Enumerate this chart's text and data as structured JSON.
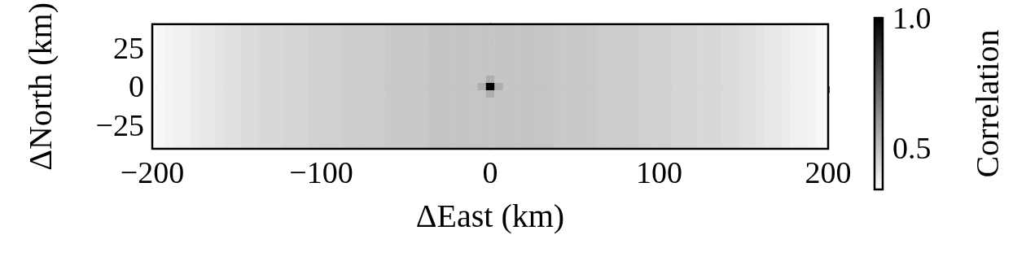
{
  "chart_data": {
    "type": "heatmap",
    "xlabel": "ΔEast (km)",
    "ylabel": "ΔNorth (km)",
    "clabel": "Correlation",
    "x": [
      -200,
      -195,
      -190,
      -185,
      -180,
      -175,
      -170,
      -165,
      -160,
      -155,
      -150,
      -145,
      -140,
      -135,
      -130,
      -125,
      -120,
      -115,
      -110,
      -105,
      -100,
      -95,
      -90,
      -85,
      -80,
      -75,
      -70,
      -65,
      -60,
      -55,
      -50,
      -45,
      -40,
      -35,
      -30,
      -25,
      -20,
      -15,
      -10,
      -5,
      0,
      5,
      10,
      15,
      20,
      25,
      30,
      35,
      40,
      45,
      50,
      55,
      60,
      65,
      70,
      75,
      80,
      85,
      90,
      95,
      100,
      105,
      110,
      115,
      120,
      125,
      130,
      135,
      140,
      145,
      150,
      155,
      160,
      165,
      170,
      175,
      180,
      185,
      190,
      195,
      200
    ],
    "cells": [
      [
        0.35,
        0.36,
        0.37,
        0.38,
        0.38,
        0.39,
        0.4,
        0.4,
        0.41,
        0.42,
        0.42,
        0.43,
        0.43,
        0.44,
        0.44,
        0.44,
        0.45,
        0.45,
        0.45,
        0.46,
        0.46,
        0.46,
        0.46,
        0.47,
        0.47,
        0.47,
        0.47,
        0.47,
        0.48,
        0.48,
        0.48,
        0.48,
        0.48,
        0.49,
        0.49,
        0.49,
        0.49,
        0.49,
        0.49,
        0.49,
        0.49,
        0.49,
        0.49,
        0.49,
        0.49,
        0.49,
        0.49,
        0.49,
        0.48,
        0.48,
        0.48,
        0.48,
        0.48,
        0.47,
        0.47,
        0.47,
        0.47,
        0.47,
        0.46,
        0.46,
        0.46,
        0.46,
        0.45,
        0.45,
        0.45,
        0.44,
        0.44,
        0.44,
        0.43,
        0.43,
        0.42,
        0.42,
        0.41,
        0.4,
        0.4,
        0.39,
        0.38,
        0.38,
        0.37,
        0.36,
        0.35
      ],
      [
        0.35,
        0.36,
        0.37,
        0.38,
        0.38,
        0.39,
        0.4,
        0.4,
        0.41,
        0.42,
        0.42,
        0.43,
        0.43,
        0.44,
        0.44,
        0.44,
        0.45,
        0.45,
        0.45,
        0.46,
        0.46,
        0.46,
        0.46,
        0.47,
        0.47,
        0.47,
        0.47,
        0.47,
        0.48,
        0.48,
        0.48,
        0.48,
        0.48,
        0.49,
        0.49,
        0.49,
        0.49,
        0.49,
        0.49,
        0.49,
        0.49,
        0.49,
        0.49,
        0.49,
        0.49,
        0.49,
        0.49,
        0.49,
        0.48,
        0.48,
        0.48,
        0.48,
        0.48,
        0.47,
        0.47,
        0.47,
        0.47,
        0.47,
        0.46,
        0.46,
        0.46,
        0.46,
        0.45,
        0.45,
        0.45,
        0.44,
        0.44,
        0.44,
        0.43,
        0.43,
        0.42,
        0.42,
        0.41,
        0.4,
        0.4,
        0.39,
        0.38,
        0.38,
        0.37,
        0.36,
        0.35
      ],
      [
        0.35,
        0.36,
        0.37,
        0.38,
        0.38,
        0.39,
        0.4,
        0.4,
        0.41,
        0.42,
        0.42,
        0.43,
        0.43,
        0.44,
        0.44,
        0.44,
        0.45,
        0.45,
        0.45,
        0.46,
        0.46,
        0.46,
        0.46,
        0.47,
        0.47,
        0.47,
        0.47,
        0.47,
        0.48,
        0.48,
        0.48,
        0.48,
        0.48,
        0.49,
        0.49,
        0.49,
        0.49,
        0.49,
        0.49,
        0.49,
        0.49,
        0.49,
        0.49,
        0.49,
        0.49,
        0.49,
        0.49,
        0.49,
        0.48,
        0.48,
        0.48,
        0.48,
        0.48,
        0.47,
        0.47,
        0.47,
        0.47,
        0.47,
        0.46,
        0.46,
        0.46,
        0.46,
        0.45,
        0.45,
        0.45,
        0.44,
        0.44,
        0.44,
        0.43,
        0.43,
        0.42,
        0.42,
        0.41,
        0.4,
        0.4,
        0.39,
        0.38,
        0.38,
        0.37,
        0.36,
        0.35
      ],
      [
        0.35,
        0.36,
        0.37,
        0.38,
        0.38,
        0.39,
        0.4,
        0.4,
        0.41,
        0.42,
        0.42,
        0.43,
        0.43,
        0.44,
        0.44,
        0.44,
        0.45,
        0.45,
        0.45,
        0.46,
        0.46,
        0.46,
        0.46,
        0.47,
        0.47,
        0.47,
        0.47,
        0.47,
        0.48,
        0.48,
        0.48,
        0.48,
        0.48,
        0.49,
        0.49,
        0.49,
        0.49,
        0.49,
        0.49,
        0.49,
        0.49,
        0.49,
        0.49,
        0.49,
        0.49,
        0.49,
        0.49,
        0.49,
        0.48,
        0.48,
        0.48,
        0.48,
        0.48,
        0.47,
        0.47,
        0.47,
        0.47,
        0.47,
        0.46,
        0.46,
        0.46,
        0.46,
        0.45,
        0.45,
        0.45,
        0.44,
        0.44,
        0.44,
        0.43,
        0.43,
        0.42,
        0.42,
        0.41,
        0.4,
        0.4,
        0.39,
        0.38,
        0.38,
        0.37,
        0.36,
        0.35
      ],
      [
        0.35,
        0.36,
        0.37,
        0.38,
        0.38,
        0.39,
        0.4,
        0.4,
        0.41,
        0.42,
        0.42,
        0.43,
        0.43,
        0.44,
        0.44,
        0.44,
        0.45,
        0.45,
        0.45,
        0.46,
        0.46,
        0.46,
        0.46,
        0.47,
        0.47,
        0.47,
        0.47,
        0.47,
        0.48,
        0.48,
        0.48,
        0.48,
        0.48,
        0.49,
        0.49,
        0.49,
        0.49,
        0.49,
        0.49,
        0.49,
        0.49,
        0.49,
        0.49,
        0.49,
        0.49,
        0.49,
        0.49,
        0.49,
        0.48,
        0.48,
        0.48,
        0.48,
        0.48,
        0.47,
        0.47,
        0.47,
        0.47,
        0.47,
        0.46,
        0.46,
        0.46,
        0.46,
        0.45,
        0.45,
        0.45,
        0.44,
        0.44,
        0.44,
        0.43,
        0.43,
        0.42,
        0.42,
        0.41,
        0.4,
        0.4,
        0.39,
        0.38,
        0.38,
        0.37,
        0.36,
        0.35
      ],
      [
        0.35,
        0.36,
        0.37,
        0.38,
        0.38,
        0.39,
        0.4,
        0.4,
        0.41,
        0.42,
        0.42,
        0.43,
        0.43,
        0.44,
        0.44,
        0.44,
        0.45,
        0.45,
        0.45,
        0.46,
        0.46,
        0.46,
        0.46,
        0.47,
        0.47,
        0.47,
        0.47,
        0.47,
        0.48,
        0.48,
        0.48,
        0.48,
        0.48,
        0.49,
        0.49,
        0.49,
        0.49,
        0.49,
        0.49,
        0.49,
        0.49,
        0.49,
        0.49,
        0.49,
        0.49,
        0.49,
        0.49,
        0.49,
        0.48,
        0.48,
        0.48,
        0.48,
        0.48,
        0.47,
        0.47,
        0.47,
        0.47,
        0.47,
        0.46,
        0.46,
        0.46,
        0.46,
        0.45,
        0.45,
        0.45,
        0.44,
        0.44,
        0.44,
        0.43,
        0.43,
        0.42,
        0.42,
        0.41,
        0.4,
        0.4,
        0.39,
        0.38,
        0.38,
        0.37,
        0.36,
        0.35
      ],
      [
        0.35,
        0.36,
        0.37,
        0.38,
        0.38,
        0.39,
        0.4,
        0.4,
        0.41,
        0.42,
        0.42,
        0.43,
        0.43,
        0.44,
        0.44,
        0.44,
        0.45,
        0.45,
        0.45,
        0.46,
        0.46,
        0.46,
        0.46,
        0.47,
        0.47,
        0.47,
        0.47,
        0.47,
        0.48,
        0.48,
        0.48,
        0.48,
        0.48,
        0.49,
        0.49,
        0.49,
        0.49,
        0.49,
        0.49,
        0.49,
        0.49,
        0.49,
        0.49,
        0.49,
        0.49,
        0.49,
        0.49,
        0.49,
        0.48,
        0.48,
        0.48,
        0.48,
        0.48,
        0.47,
        0.47,
        0.47,
        0.47,
        0.47,
        0.46,
        0.46,
        0.46,
        0.46,
        0.45,
        0.45,
        0.45,
        0.44,
        0.44,
        0.44,
        0.43,
        0.43,
        0.42,
        0.42,
        0.41,
        0.4,
        0.4,
        0.39,
        0.38,
        0.38,
        0.37,
        0.36,
        0.35
      ],
      [
        0.35,
        0.36,
        0.37,
        0.38,
        0.38,
        0.39,
        0.4,
        0.4,
        0.41,
        0.42,
        0.42,
        0.43,
        0.43,
        0.44,
        0.44,
        0.44,
        0.45,
        0.45,
        0.45,
        0.46,
        0.46,
        0.46,
        0.46,
        0.47,
        0.47,
        0.47,
        0.47,
        0.47,
        0.48,
        0.48,
        0.48,
        0.48,
        0.48,
        0.49,
        0.49,
        0.49,
        0.49,
        0.49,
        0.49,
        0.49,
        0.55,
        0.49,
        0.49,
        0.49,
        0.49,
        0.49,
        0.49,
        0.49,
        0.48,
        0.48,
        0.48,
        0.48,
        0.48,
        0.47,
        0.47,
        0.47,
        0.47,
        0.47,
        0.46,
        0.46,
        0.46,
        0.46,
        0.45,
        0.45,
        0.45,
        0.44,
        0.44,
        0.44,
        0.43,
        0.43,
        0.42,
        0.42,
        0.41,
        0.4,
        0.4,
        0.39,
        0.38,
        0.38,
        0.37,
        0.36,
        0.35
      ],
      [
        0.35,
        0.36,
        0.37,
        0.38,
        0.38,
        0.39,
        0.4,
        0.4,
        0.41,
        0.42,
        0.42,
        0.43,
        0.43,
        0.44,
        0.44,
        0.44,
        0.45,
        0.45,
        0.45,
        0.46,
        0.46,
        0.46,
        0.46,
        0.47,
        0.47,
        0.47,
        0.47,
        0.47,
        0.48,
        0.48,
        0.48,
        0.48,
        0.48,
        0.49,
        0.49,
        0.49,
        0.49,
        0.49,
        0.49,
        0.55,
        1.0,
        0.55,
        0.49,
        0.49,
        0.49,
        0.49,
        0.49,
        0.49,
        0.48,
        0.48,
        0.48,
        0.48,
        0.48,
        0.47,
        0.47,
        0.47,
        0.47,
        0.47,
        0.46,
        0.46,
        0.46,
        0.46,
        0.45,
        0.45,
        0.45,
        0.44,
        0.44,
        0.44,
        0.43,
        0.43,
        0.42,
        0.42,
        0.41,
        0.4,
        0.4,
        0.39,
        0.38,
        0.38,
        0.37,
        0.36,
        0.35
      ],
      [
        0.35,
        0.36,
        0.37,
        0.38,
        0.38,
        0.39,
        0.4,
        0.4,
        0.41,
        0.42,
        0.42,
        0.43,
        0.43,
        0.44,
        0.44,
        0.44,
        0.45,
        0.45,
        0.45,
        0.46,
        0.46,
        0.46,
        0.46,
        0.47,
        0.47,
        0.47,
        0.47,
        0.47,
        0.48,
        0.48,
        0.48,
        0.48,
        0.48,
        0.49,
        0.49,
        0.49,
        0.49,
        0.49,
        0.49,
        0.49,
        0.55,
        0.49,
        0.49,
        0.49,
        0.49,
        0.49,
        0.49,
        0.49,
        0.48,
        0.48,
        0.48,
        0.48,
        0.48,
        0.47,
        0.47,
        0.47,
        0.47,
        0.47,
        0.46,
        0.46,
        0.46,
        0.46,
        0.45,
        0.45,
        0.45,
        0.44,
        0.44,
        0.44,
        0.43,
        0.43,
        0.42,
        0.42,
        0.41,
        0.4,
        0.4,
        0.39,
        0.38,
        0.38,
        0.37,
        0.36,
        0.35
      ],
      [
        0.35,
        0.36,
        0.37,
        0.38,
        0.38,
        0.39,
        0.4,
        0.4,
        0.41,
        0.42,
        0.42,
        0.43,
        0.43,
        0.44,
        0.44,
        0.44,
        0.45,
        0.45,
        0.45,
        0.46,
        0.46,
        0.46,
        0.46,
        0.47,
        0.47,
        0.47,
        0.47,
        0.47,
        0.48,
        0.48,
        0.48,
        0.48,
        0.48,
        0.49,
        0.49,
        0.49,
        0.49,
        0.49,
        0.49,
        0.49,
        0.49,
        0.49,
        0.49,
        0.49,
        0.49,
        0.49,
        0.49,
        0.49,
        0.48,
        0.48,
        0.48,
        0.48,
        0.48,
        0.47,
        0.47,
        0.47,
        0.47,
        0.47,
        0.46,
        0.46,
        0.46,
        0.46,
        0.45,
        0.45,
        0.45,
        0.44,
        0.44,
        0.44,
        0.43,
        0.43,
        0.42,
        0.42,
        0.41,
        0.4,
        0.4,
        0.39,
        0.38,
        0.38,
        0.37,
        0.36,
        0.35
      ],
      [
        0.35,
        0.36,
        0.37,
        0.38,
        0.38,
        0.39,
        0.4,
        0.4,
        0.41,
        0.42,
        0.42,
        0.43,
        0.43,
        0.44,
        0.44,
        0.44,
        0.45,
        0.45,
        0.45,
        0.46,
        0.46,
        0.46,
        0.46,
        0.47,
        0.47,
        0.47,
        0.47,
        0.47,
        0.48,
        0.48,
        0.48,
        0.48,
        0.48,
        0.49,
        0.49,
        0.49,
        0.49,
        0.49,
        0.49,
        0.49,
        0.49,
        0.49,
        0.49,
        0.49,
        0.49,
        0.49,
        0.49,
        0.49,
        0.48,
        0.48,
        0.48,
        0.48,
        0.48,
        0.47,
        0.47,
        0.47,
        0.47,
        0.47,
        0.46,
        0.46,
        0.46,
        0.46,
        0.45,
        0.45,
        0.45,
        0.44,
        0.44,
        0.44,
        0.43,
        0.43,
        0.42,
        0.42,
        0.41,
        0.4,
        0.4,
        0.39,
        0.38,
        0.38,
        0.37,
        0.36,
        0.35
      ],
      [
        0.35,
        0.36,
        0.37,
        0.38,
        0.38,
        0.39,
        0.4,
        0.4,
        0.41,
        0.42,
        0.42,
        0.43,
        0.43,
        0.44,
        0.44,
        0.44,
        0.45,
        0.45,
        0.45,
        0.46,
        0.46,
        0.46,
        0.46,
        0.47,
        0.47,
        0.47,
        0.47,
        0.47,
        0.48,
        0.48,
        0.48,
        0.48,
        0.48,
        0.49,
        0.49,
        0.49,
        0.49,
        0.49,
        0.49,
        0.49,
        0.49,
        0.49,
        0.49,
        0.49,
        0.49,
        0.49,
        0.49,
        0.49,
        0.48,
        0.48,
        0.48,
        0.48,
        0.48,
        0.47,
        0.47,
        0.47,
        0.47,
        0.47,
        0.46,
        0.46,
        0.46,
        0.46,
        0.45,
        0.45,
        0.45,
        0.44,
        0.44,
        0.44,
        0.43,
        0.43,
        0.42,
        0.42,
        0.41,
        0.4,
        0.4,
        0.39,
        0.38,
        0.38,
        0.37,
        0.36,
        0.35
      ],
      [
        0.35,
        0.36,
        0.37,
        0.38,
        0.38,
        0.39,
        0.4,
        0.4,
        0.41,
        0.42,
        0.42,
        0.43,
        0.43,
        0.44,
        0.44,
        0.44,
        0.45,
        0.45,
        0.45,
        0.46,
        0.46,
        0.46,
        0.46,
        0.47,
        0.47,
        0.47,
        0.47,
        0.47,
        0.48,
        0.48,
        0.48,
        0.48,
        0.48,
        0.49,
        0.49,
        0.49,
        0.49,
        0.49,
        0.49,
        0.49,
        0.49,
        0.49,
        0.49,
        0.49,
        0.49,
        0.49,
        0.49,
        0.49,
        0.48,
        0.48,
        0.48,
        0.48,
        0.48,
        0.47,
        0.47,
        0.47,
        0.47,
        0.47,
        0.46,
        0.46,
        0.46,
        0.46,
        0.45,
        0.45,
        0.45,
        0.44,
        0.44,
        0.44,
        0.43,
        0.43,
        0.42,
        0.42,
        0.41,
        0.4,
        0.4,
        0.39,
        0.38,
        0.38,
        0.37,
        0.36,
        0.35
      ],
      [
        0.35,
        0.36,
        0.37,
        0.38,
        0.38,
        0.39,
        0.4,
        0.4,
        0.41,
        0.42,
        0.42,
        0.43,
        0.43,
        0.44,
        0.44,
        0.44,
        0.45,
        0.45,
        0.45,
        0.46,
        0.46,
        0.46,
        0.46,
        0.47,
        0.47,
        0.47,
        0.47,
        0.47,
        0.48,
        0.48,
        0.48,
        0.48,
        0.48,
        0.49,
        0.49,
        0.49,
        0.49,
        0.49,
        0.49,
        0.49,
        0.49,
        0.49,
        0.49,
        0.49,
        0.49,
        0.49,
        0.49,
        0.49,
        0.48,
        0.48,
        0.48,
        0.48,
        0.48,
        0.47,
        0.47,
        0.47,
        0.47,
        0.47,
        0.46,
        0.46,
        0.46,
        0.46,
        0.45,
        0.45,
        0.45,
        0.44,
        0.44,
        0.44,
        0.43,
        0.43,
        0.42,
        0.42,
        0.41,
        0.4,
        0.4,
        0.39,
        0.38,
        0.38,
        0.37,
        0.36,
        0.35
      ],
      [
        0.35,
        0.36,
        0.37,
        0.38,
        0.38,
        0.39,
        0.4,
        0.4,
        0.41,
        0.42,
        0.42,
        0.43,
        0.43,
        0.44,
        0.44,
        0.44,
        0.45,
        0.45,
        0.45,
        0.46,
        0.46,
        0.46,
        0.46,
        0.47,
        0.47,
        0.47,
        0.47,
        0.47,
        0.48,
        0.48,
        0.48,
        0.48,
        0.48,
        0.49,
        0.49,
        0.49,
        0.49,
        0.49,
        0.49,
        0.49,
        0.49,
        0.49,
        0.49,
        0.49,
        0.49,
        0.49,
        0.49,
        0.49,
        0.48,
        0.48,
        0.48,
        0.48,
        0.48,
        0.47,
        0.47,
        0.47,
        0.47,
        0.47,
        0.46,
        0.46,
        0.46,
        0.46,
        0.45,
        0.45,
        0.45,
        0.44,
        0.44,
        0.44,
        0.43,
        0.43,
        0.42,
        0.42,
        0.41,
        0.4,
        0.4,
        0.39,
        0.38,
        0.38,
        0.37,
        0.36,
        0.35
      ],
      [
        0.35,
        0.36,
        0.37,
        0.38,
        0.38,
        0.39,
        0.4,
        0.4,
        0.41,
        0.42,
        0.42,
        0.43,
        0.43,
        0.44,
        0.44,
        0.44,
        0.45,
        0.45,
        0.45,
        0.46,
        0.46,
        0.46,
        0.46,
        0.47,
        0.47,
        0.47,
        0.47,
        0.47,
        0.48,
        0.48,
        0.48,
        0.48,
        0.48,
        0.49,
        0.49,
        0.49,
        0.49,
        0.49,
        0.49,
        0.49,
        0.49,
        0.49,
        0.49,
        0.49,
        0.49,
        0.49,
        0.49,
        0.49,
        0.48,
        0.48,
        0.48,
        0.48,
        0.48,
        0.47,
        0.47,
        0.47,
        0.47,
        0.47,
        0.46,
        0.46,
        0.46,
        0.46,
        0.45,
        0.45,
        0.45,
        0.44,
        0.44,
        0.44,
        0.43,
        0.43,
        0.42,
        0.42,
        0.41,
        0.4,
        0.4,
        0.39,
        0.38,
        0.38,
        0.37,
        0.36,
        0.35
      ]
    ],
    "xlim": [
      -200,
      200
    ],
    "xticks": [
      {
        "value": -200,
        "label": "−200"
      },
      {
        "value": -100,
        "label": "−100"
      },
      0,
      100,
      200
    ],
    "ylim": [
      -40,
      40
    ],
    "yticks": [
      {
        "value": -25,
        "label": "−25"
      },
      0,
      25
    ],
    "clim": [
      0.34,
      1.0
    ],
    "cticks": [
      0.5,
      {
        "value": 1.0,
        "label": "1.0"
      }
    ]
  }
}
